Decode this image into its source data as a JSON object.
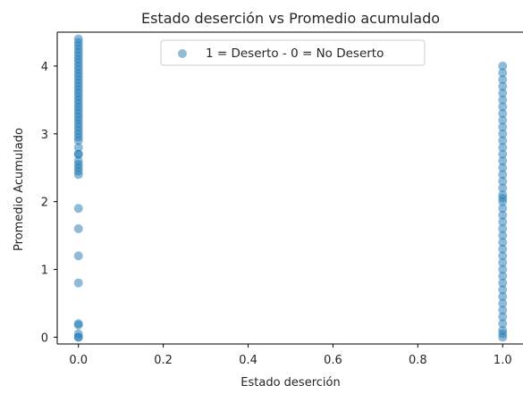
{
  "chart_data": {
    "type": "scatter",
    "title": "Estado deserción  vs Promedio acumulado",
    "xlabel": "Estado deserción",
    "ylabel": "Promedio Acumulado",
    "xlim": [
      -0.05,
      1.05
    ],
    "ylim": [
      -0.1,
      4.5
    ],
    "xticks": [
      "0.0",
      "0.2",
      "0.4",
      "0.6",
      "0.8",
      "1.0"
    ],
    "xtick_values": [
      0.0,
      0.2,
      0.4,
      0.6,
      0.8,
      1.0
    ],
    "yticks": [
      "0",
      "1",
      "2",
      "3",
      "4"
    ],
    "ytick_values": [
      0,
      1,
      2,
      3,
      4
    ],
    "grid": false,
    "legend_position": "top-center",
    "point_color": "#1f77b4",
    "point_alpha": 0.5,
    "series": [
      {
        "name": "1 = Deserto - 0 = No Deserto",
        "points": [
          {
            "x": 0,
            "y": 0.0
          },
          {
            "x": 0,
            "y": 0.0
          },
          {
            "x": 0,
            "y": 0.05
          },
          {
            "x": 0,
            "y": 0.18
          },
          {
            "x": 0,
            "y": 0.2
          },
          {
            "x": 0,
            "y": 0.8
          },
          {
            "x": 0,
            "y": 1.2
          },
          {
            "x": 0,
            "y": 1.6
          },
          {
            "x": 0,
            "y": 1.9
          },
          {
            "x": 0,
            "y": 2.4
          },
          {
            "x": 0,
            "y": 2.45
          },
          {
            "x": 0,
            "y": 2.5
          },
          {
            "x": 0,
            "y": 2.55
          },
          {
            "x": 0,
            "y": 2.6
          },
          {
            "x": 0,
            "y": 2.7
          },
          {
            "x": 0,
            "y": 2.7
          },
          {
            "x": 0,
            "y": 2.8
          },
          {
            "x": 0,
            "y": 2.9
          },
          {
            "x": 0,
            "y": 2.95
          },
          {
            "x": 0,
            "y": 3.0
          },
          {
            "x": 0,
            "y": 3.05
          },
          {
            "x": 0,
            "y": 3.1
          },
          {
            "x": 0,
            "y": 3.15
          },
          {
            "x": 0,
            "y": 3.2
          },
          {
            "x": 0,
            "y": 3.25
          },
          {
            "x": 0,
            "y": 3.3
          },
          {
            "x": 0,
            "y": 3.35
          },
          {
            "x": 0,
            "y": 3.4
          },
          {
            "x": 0,
            "y": 3.45
          },
          {
            "x": 0,
            "y": 3.5
          },
          {
            "x": 0,
            "y": 3.55
          },
          {
            "x": 0,
            "y": 3.6
          },
          {
            "x": 0,
            "y": 3.65
          },
          {
            "x": 0,
            "y": 3.7
          },
          {
            "x": 0,
            "y": 3.75
          },
          {
            "x": 0,
            "y": 3.8
          },
          {
            "x": 0,
            "y": 3.85
          },
          {
            "x": 0,
            "y": 3.9
          },
          {
            "x": 0,
            "y": 3.95
          },
          {
            "x": 0,
            "y": 4.0
          },
          {
            "x": 0,
            "y": 4.05
          },
          {
            "x": 0,
            "y": 4.1
          },
          {
            "x": 0,
            "y": 4.15
          },
          {
            "x": 0,
            "y": 4.2
          },
          {
            "x": 0,
            "y": 4.25
          },
          {
            "x": 0,
            "y": 4.3
          },
          {
            "x": 0,
            "y": 4.35
          },
          {
            "x": 0,
            "y": 4.4
          },
          {
            "x": 1,
            "y": 0.0
          },
          {
            "x": 1,
            "y": 0.05
          },
          {
            "x": 1,
            "y": 0.1
          },
          {
            "x": 1,
            "y": 0.2
          },
          {
            "x": 1,
            "y": 0.3
          },
          {
            "x": 1,
            "y": 0.4
          },
          {
            "x": 1,
            "y": 0.5
          },
          {
            "x": 1,
            "y": 0.6
          },
          {
            "x": 1,
            "y": 0.7
          },
          {
            "x": 1,
            "y": 0.8
          },
          {
            "x": 1,
            "y": 0.9
          },
          {
            "x": 1,
            "y": 1.0
          },
          {
            "x": 1,
            "y": 1.1
          },
          {
            "x": 1,
            "y": 1.2
          },
          {
            "x": 1,
            "y": 1.3
          },
          {
            "x": 1,
            "y": 1.4
          },
          {
            "x": 1,
            "y": 1.5
          },
          {
            "x": 1,
            "y": 1.6
          },
          {
            "x": 1,
            "y": 1.7
          },
          {
            "x": 1,
            "y": 1.8
          },
          {
            "x": 1,
            "y": 1.9
          },
          {
            "x": 1,
            "y": 2.0
          },
          {
            "x": 1,
            "y": 2.05
          },
          {
            "x": 1,
            "y": 2.1
          },
          {
            "x": 1,
            "y": 2.2
          },
          {
            "x": 1,
            "y": 2.3
          },
          {
            "x": 1,
            "y": 2.4
          },
          {
            "x": 1,
            "y": 2.5
          },
          {
            "x": 1,
            "y": 2.6
          },
          {
            "x": 1,
            "y": 2.7
          },
          {
            "x": 1,
            "y": 2.8
          },
          {
            "x": 1,
            "y": 2.9
          },
          {
            "x": 1,
            "y": 3.0
          },
          {
            "x": 1,
            "y": 3.1
          },
          {
            "x": 1,
            "y": 3.2
          },
          {
            "x": 1,
            "y": 3.3
          },
          {
            "x": 1,
            "y": 3.4
          },
          {
            "x": 1,
            "y": 3.5
          },
          {
            "x": 1,
            "y": 3.6
          },
          {
            "x": 1,
            "y": 3.7
          },
          {
            "x": 1,
            "y": 3.8
          },
          {
            "x": 1,
            "y": 3.9
          },
          {
            "x": 1,
            "y": 4.0
          }
        ]
      }
    ]
  }
}
